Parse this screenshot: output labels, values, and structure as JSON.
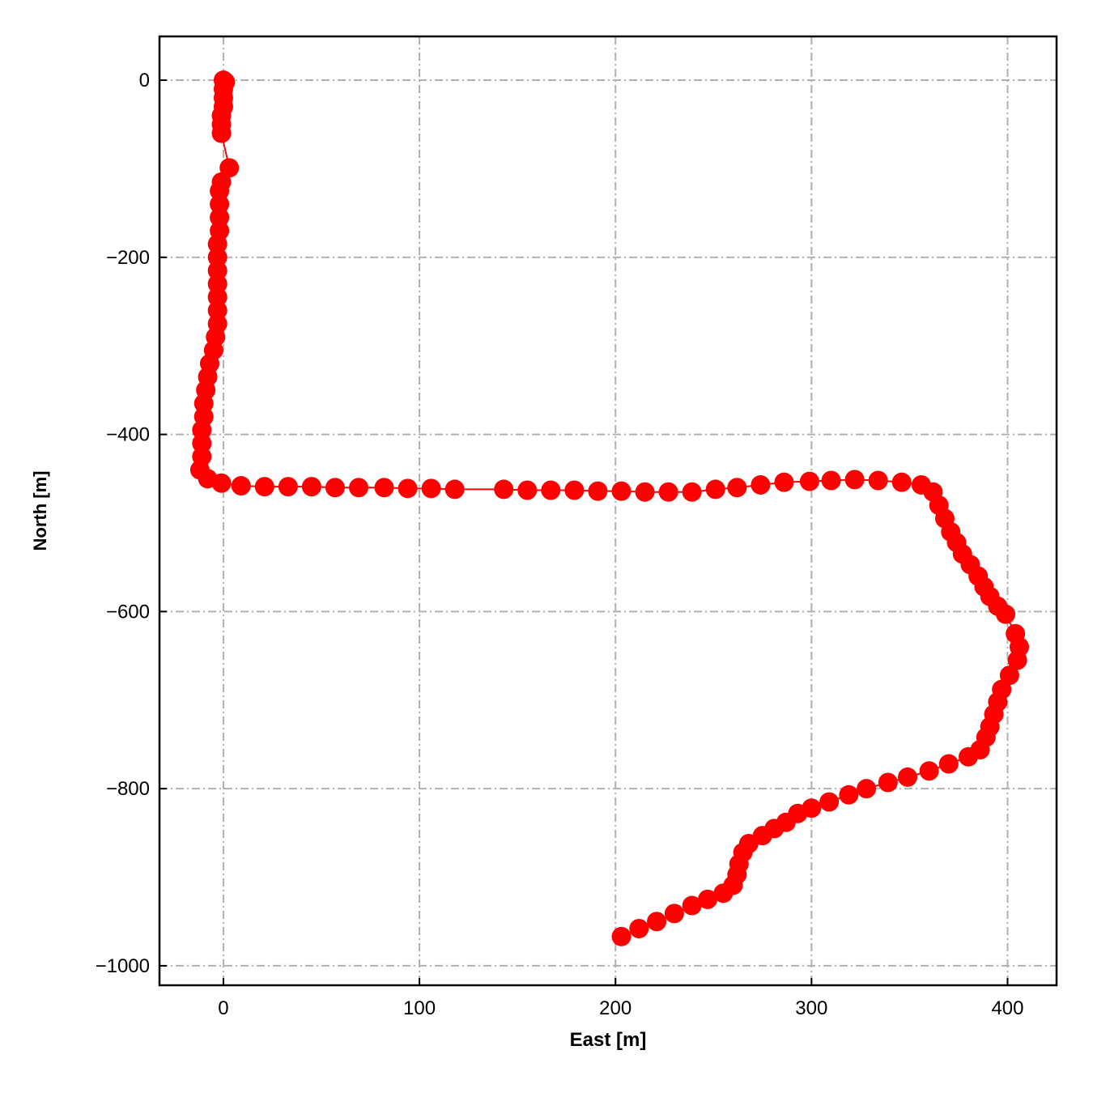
{
  "chart_data": {
    "type": "line",
    "xlabel": "East [m]",
    "ylabel": "North [m]",
    "x": [
      0,
      1,
      0,
      0,
      0,
      -1,
      -1,
      -1,
      3,
      -1,
      -2,
      -2,
      -2,
      -2,
      -3,
      -3,
      -3,
      -3,
      -3,
      -3,
      -3,
      -4,
      -5,
      -7,
      -8,
      -9,
      -10,
      -10,
      -11,
      -11,
      -11,
      -12,
      -8,
      -1,
      9,
      21,
      33,
      45,
      57,
      69,
      82,
      94,
      106,
      118,
      143,
      155,
      167,
      179,
      191,
      203,
      215,
      227,
      239,
      251,
      262,
      274,
      286,
      299,
      310,
      322,
      334,
      346,
      356,
      362,
      365,
      368,
      371,
      374,
      377,
      381,
      385,
      388,
      391,
      395,
      399,
      404,
      406,
      405,
      401,
      397,
      395,
      393,
      391,
      389,
      386,
      380,
      370,
      360,
      349,
      339,
      328,
      319,
      309,
      300,
      293,
      287,
      281,
      275,
      268,
      265,
      263,
      262,
      260,
      255,
      247,
      239,
      230,
      221,
      212,
      203
    ],
    "values": [
      0,
      -2,
      -10,
      -20,
      -30,
      -40,
      -50,
      -60,
      -99,
      -115,
      -125,
      -140,
      -155,
      -170,
      -185,
      -200,
      -215,
      -230,
      -245,
      -260,
      -275,
      -290,
      -305,
      -320,
      -335,
      -350,
      -365,
      -380,
      -395,
      -410,
      -425,
      -440,
      -450,
      -455,
      -458,
      -459,
      -459,
      -459,
      -460,
      -460,
      -460,
      -461,
      -461,
      -462,
      -462,
      -463,
      -463,
      -463,
      -464,
      -464,
      -465,
      -465,
      -465,
      -462,
      -460,
      -457,
      -454,
      -453,
      -452,
      -451,
      -452,
      -454,
      -457,
      -465,
      -480,
      -495,
      -510,
      -522,
      -535,
      -547,
      -560,
      -572,
      -583,
      -594,
      -603,
      -625,
      -640,
      -655,
      -672,
      -688,
      -702,
      -716,
      -730,
      -742,
      -756,
      -764,
      -772,
      -780,
      -787,
      -793,
      -800,
      -807,
      -815,
      -822,
      -828,
      -838,
      -845,
      -853,
      -862,
      -872,
      -885,
      -897,
      -909,
      -918,
      -925,
      -932,
      -941,
      -950,
      -958,
      -967
    ],
    "color": "#ff0000",
    "marker": "circle",
    "xlim": [
      -32.6,
      425
    ],
    "ylim": [
      -1022,
      49.4
    ],
    "xticks": [
      0,
      100,
      200,
      300,
      400
    ],
    "yticks": [
      0,
      {
        "value": -200,
        "label": "−200"
      },
      {
        "value": -400,
        "label": "−400"
      },
      {
        "value": -600,
        "label": "−600"
      },
      {
        "value": -800,
        "label": "−800"
      },
      {
        "value": -1000,
        "label": "−1000"
      }
    ],
    "grid": true
  }
}
